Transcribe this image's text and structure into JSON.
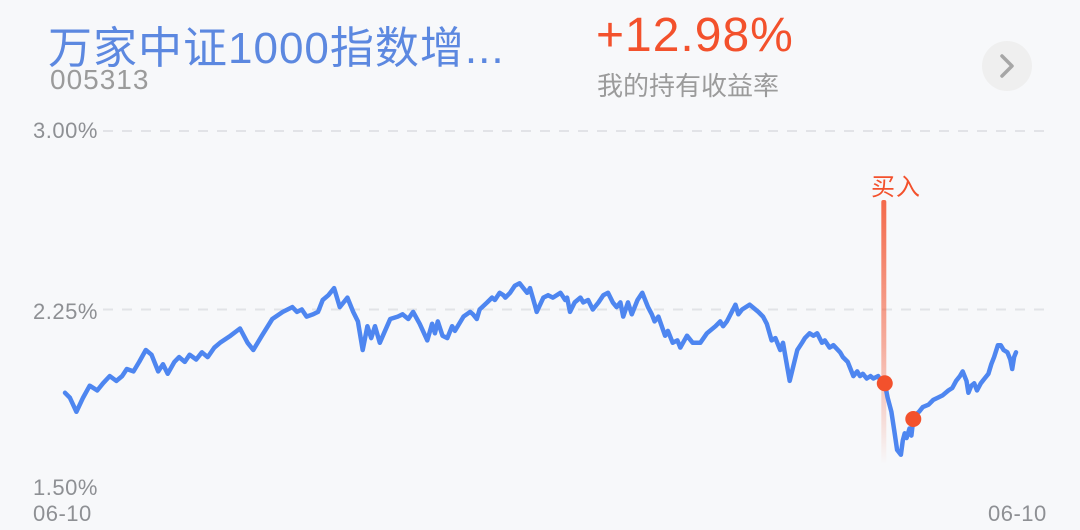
{
  "header": {
    "fund_name": "万家中证1000指数增...",
    "fund_code": "005313",
    "return_value": "+12.98%",
    "return_label": "我的持有收益率",
    "chevron_icon": "chevron-right"
  },
  "colors": {
    "fund_name_blue": "#5c88e0",
    "return_red": "#f3512c",
    "line_blue": "#4e86f0",
    "muted_gray": "#9b9b9b",
    "axis_gray": "#8e9094",
    "gridline_gray": "#e2e3e7",
    "background": "#f7f8fa",
    "chevron_circle_bg": "#efefef",
    "chevron_glyph": "#a6a6a6"
  },
  "chart_data": {
    "type": "line",
    "title": "",
    "xlabel": "",
    "ylabel": "",
    "ylim": [
      1.5,
      3.0
    ],
    "grid": "horizontal-dashed",
    "legend": "none",
    "y_axis": {
      "tick_labels": [
        "3.00%",
        "2.25%",
        "1.50%"
      ],
      "ticks": [
        3.0,
        2.25,
        1.5
      ],
      "gridline_ticks": [
        3.0,
        2.25
      ]
    },
    "x_axis": {
      "labels": [
        "06-10",
        "06-10"
      ]
    },
    "series": [
      {
        "name": "我的持有收益率",
        "color": "#4e86f0",
        "points": [
          [
            0.0,
            1.9
          ],
          [
            0.005,
            1.88
          ],
          [
            0.012,
            1.82
          ],
          [
            0.019,
            1.88
          ],
          [
            0.026,
            1.93
          ],
          [
            0.034,
            1.91
          ],
          [
            0.04,
            1.94
          ],
          [
            0.047,
            1.97
          ],
          [
            0.054,
            1.95
          ],
          [
            0.06,
            1.97
          ],
          [
            0.065,
            2.0
          ],
          [
            0.072,
            1.99
          ],
          [
            0.078,
            2.03
          ],
          [
            0.085,
            2.08
          ],
          [
            0.091,
            2.06
          ],
          [
            0.098,
            1.99
          ],
          [
            0.103,
            2.02
          ],
          [
            0.108,
            1.98
          ],
          [
            0.115,
            2.03
          ],
          [
            0.12,
            2.05
          ],
          [
            0.126,
            2.03
          ],
          [
            0.131,
            2.06
          ],
          [
            0.138,
            2.04
          ],
          [
            0.144,
            2.07
          ],
          [
            0.15,
            2.05
          ],
          [
            0.157,
            2.09
          ],
          [
            0.163,
            2.11
          ],
          [
            0.174,
            2.14
          ],
          [
            0.184,
            2.17
          ],
          [
            0.192,
            2.11
          ],
          [
            0.198,
            2.08
          ],
          [
            0.207,
            2.14
          ],
          [
            0.218,
            2.21
          ],
          [
            0.229,
            2.24
          ],
          [
            0.239,
            2.26
          ],
          [
            0.244,
            2.24
          ],
          [
            0.249,
            2.25
          ],
          [
            0.254,
            2.22
          ],
          [
            0.261,
            2.23
          ],
          [
            0.266,
            2.24
          ],
          [
            0.271,
            2.29
          ],
          [
            0.277,
            2.31
          ],
          [
            0.283,
            2.34
          ],
          [
            0.289,
            2.26
          ],
          [
            0.297,
            2.3
          ],
          [
            0.303,
            2.24
          ],
          [
            0.308,
            2.2
          ],
          [
            0.313,
            2.08
          ],
          [
            0.318,
            2.18
          ],
          [
            0.322,
            2.13
          ],
          [
            0.326,
            2.18
          ],
          [
            0.331,
            2.11
          ],
          [
            0.342,
            2.21
          ],
          [
            0.35,
            2.22
          ],
          [
            0.355,
            2.23
          ],
          [
            0.361,
            2.21
          ],
          [
            0.366,
            2.24
          ],
          [
            0.373,
            2.19
          ],
          [
            0.381,
            2.12
          ],
          [
            0.386,
            2.19
          ],
          [
            0.389,
            2.15
          ],
          [
            0.392,
            2.2
          ],
          [
            0.397,
            2.14
          ],
          [
            0.402,
            2.13
          ],
          [
            0.407,
            2.18
          ],
          [
            0.41,
            2.16
          ],
          [
            0.419,
            2.22
          ],
          [
            0.426,
            2.24
          ],
          [
            0.429,
            2.23
          ],
          [
            0.433,
            2.21
          ],
          [
            0.436,
            2.25
          ],
          [
            0.444,
            2.28
          ],
          [
            0.449,
            2.3
          ],
          [
            0.452,
            2.29
          ],
          [
            0.457,
            2.32
          ],
          [
            0.461,
            2.31
          ],
          [
            0.463,
            2.3
          ],
          [
            0.468,
            2.32
          ],
          [
            0.473,
            2.35
          ],
          [
            0.478,
            2.36
          ],
          [
            0.482,
            2.34
          ],
          [
            0.486,
            2.32
          ],
          [
            0.489,
            2.34
          ],
          [
            0.494,
            2.27
          ],
          [
            0.496,
            2.24
          ],
          [
            0.503,
            2.3
          ],
          [
            0.508,
            2.31
          ],
          [
            0.513,
            2.3
          ],
          [
            0.521,
            2.32
          ],
          [
            0.526,
            2.29
          ],
          [
            0.528,
            2.3
          ],
          [
            0.531,
            2.24
          ],
          [
            0.536,
            2.28
          ],
          [
            0.542,
            2.3
          ],
          [
            0.545,
            2.28
          ],
          [
            0.55,
            2.29
          ],
          [
            0.555,
            2.25
          ],
          [
            0.561,
            2.28
          ],
          [
            0.566,
            2.31
          ],
          [
            0.571,
            2.32
          ],
          [
            0.576,
            2.28
          ],
          [
            0.58,
            2.26
          ],
          [
            0.584,
            2.28
          ],
          [
            0.587,
            2.22
          ],
          [
            0.592,
            2.28
          ],
          [
            0.596,
            2.23
          ],
          [
            0.602,
            2.29
          ],
          [
            0.607,
            2.32
          ],
          [
            0.613,
            2.26
          ],
          [
            0.617,
            2.23
          ],
          [
            0.62,
            2.2
          ],
          [
            0.624,
            2.22
          ],
          [
            0.631,
            2.14
          ],
          [
            0.634,
            2.16
          ],
          [
            0.639,
            2.11
          ],
          [
            0.644,
            2.12
          ],
          [
            0.647,
            2.09
          ],
          [
            0.654,
            2.14
          ],
          [
            0.66,
            2.11
          ],
          [
            0.668,
            2.11
          ],
          [
            0.675,
            2.15
          ],
          [
            0.684,
            2.18
          ],
          [
            0.689,
            2.2
          ],
          [
            0.692,
            2.18
          ],
          [
            0.696,
            2.2
          ],
          [
            0.705,
            2.27
          ],
          [
            0.708,
            2.23
          ],
          [
            0.712,
            2.25
          ],
          [
            0.72,
            2.27
          ],
          [
            0.723,
            2.26
          ],
          [
            0.729,
            2.24
          ],
          [
            0.734,
            2.22
          ],
          [
            0.738,
            2.19
          ],
          [
            0.743,
            2.12
          ],
          [
            0.747,
            2.13
          ],
          [
            0.752,
            2.08
          ],
          [
            0.755,
            2.11
          ],
          [
            0.762,
            1.95
          ],
          [
            0.77,
            2.08
          ],
          [
            0.775,
            2.11
          ],
          [
            0.778,
            2.13
          ],
          [
            0.783,
            2.15
          ],
          [
            0.787,
            2.14
          ],
          [
            0.791,
            2.15
          ],
          [
            0.796,
            2.11
          ],
          [
            0.799,
            2.12
          ],
          [
            0.804,
            2.09
          ],
          [
            0.808,
            2.1
          ],
          [
            0.815,
            2.07
          ],
          [
            0.818,
            2.05
          ],
          [
            0.823,
            2.03
          ],
          [
            0.829,
            1.97
          ],
          [
            0.833,
            1.99
          ],
          [
            0.836,
            1.97
          ],
          [
            0.839,
            1.98
          ],
          [
            0.843,
            1.96
          ],
          [
            0.847,
            1.97
          ],
          [
            0.85,
            1.96
          ],
          [
            0.855,
            1.97
          ],
          [
            0.858,
            1.95
          ],
          [
            0.862,
            1.94
          ],
          [
            0.865,
            1.88
          ],
          [
            0.869,
            1.82
          ],
          [
            0.872,
            1.74
          ],
          [
            0.875,
            1.66
          ],
          [
            0.879,
            1.64
          ],
          [
            0.881,
            1.7
          ],
          [
            0.883,
            1.73
          ],
          [
            0.885,
            1.71
          ],
          [
            0.888,
            1.75
          ],
          [
            0.89,
            1.72
          ],
          [
            0.892,
            1.79
          ],
          [
            0.895,
            1.81
          ],
          [
            0.898,
            1.82
          ],
          [
            0.902,
            1.84
          ],
          [
            0.908,
            1.85
          ],
          [
            0.913,
            1.87
          ],
          [
            0.918,
            1.88
          ],
          [
            0.923,
            1.89
          ],
          [
            0.929,
            1.91
          ],
          [
            0.933,
            1.92
          ],
          [
            0.937,
            1.95
          ],
          [
            0.941,
            1.97
          ],
          [
            0.944,
            1.99
          ],
          [
            0.948,
            1.95
          ],
          [
            0.95,
            1.9
          ],
          [
            0.953,
            1.93
          ],
          [
            0.956,
            1.94
          ],
          [
            0.959,
            1.91
          ],
          [
            0.963,
            1.94
          ],
          [
            0.967,
            1.96
          ],
          [
            0.971,
            1.98
          ],
          [
            0.974,
            2.02
          ],
          [
            0.977,
            2.05
          ],
          [
            0.981,
            2.1
          ],
          [
            0.984,
            2.1
          ],
          [
            0.987,
            2.08
          ],
          [
            0.991,
            2.07
          ],
          [
            0.994,
            2.04
          ],
          [
            0.996,
            2.0
          ],
          [
            0.998,
            2.05
          ],
          [
            1.0,
            2.07
          ]
        ]
      }
    ],
    "buy_marker": {
      "label": "买入",
      "x": 0.861,
      "line_top": 2.71,
      "line_bottom": 1.6,
      "color": "#f3512c",
      "dots": [
        {
          "x": 0.862,
          "y": 1.94
        },
        {
          "x": 0.892,
          "y": 1.79
        }
      ]
    }
  }
}
